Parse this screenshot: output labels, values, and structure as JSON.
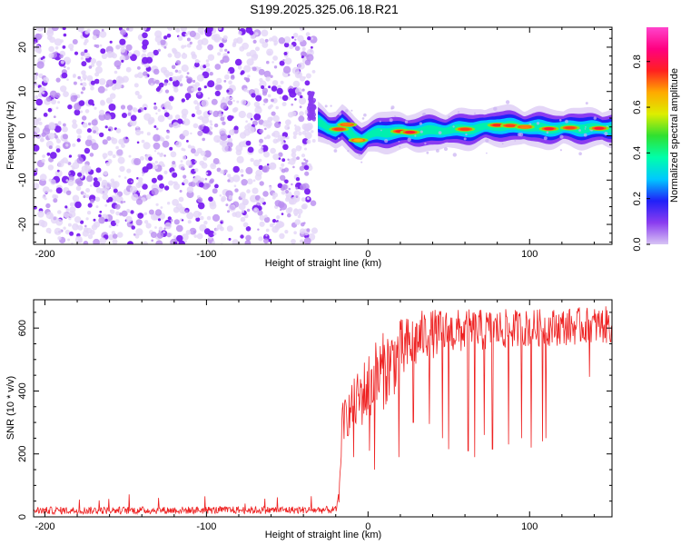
{
  "title": "S199.2025.325.06.18.R21",
  "colors": {
    "axis": "#000000",
    "snr_line": "#ee2222",
    "noise": "#7f22ee",
    "background": "#ffffff"
  },
  "chart_data": [
    {
      "type": "heatmap",
      "name": "spectrogram",
      "xlabel": "Height of straight line (km)",
      "ylabel": "Frequency (Hz)",
      "xlim": [
        -207,
        151
      ],
      "ylim": [
        -24.5,
        24.5
      ],
      "xticks": [
        -200,
        -100,
        0,
        100
      ],
      "yticks": [
        -20,
        -10,
        0,
        10,
        20
      ],
      "colorbar": {
        "label": "Normalized spectral amplitude",
        "range": [
          0,
          0.95
        ],
        "ticks": [
          0.0,
          0.2,
          0.4,
          0.6,
          0.8
        ],
        "colormap": [
          "#d8c4f4",
          "#8a3cf0",
          "#2020f8",
          "#00c8ff",
          "#00ffaa",
          "#30e030",
          "#ddee00",
          "#ffaa00",
          "#ff2020",
          "#ff0080",
          "#ff44cc"
        ]
      },
      "noise_region_km": [
        -207,
        -33
      ],
      "ridge": [
        {
          "x": -31,
          "f": 3.0
        },
        {
          "x": -25,
          "f": 1.8
        },
        {
          "x": -20,
          "f": 1.5
        },
        {
          "x": -16,
          "f": 2.4
        },
        {
          "x": -12,
          "f": 0.8
        },
        {
          "x": -8,
          "f": -0.4
        },
        {
          "x": -4,
          "f": -1.0
        },
        {
          "x": 0,
          "f": 0.0
        },
        {
          "x": 6,
          "f": 0.6
        },
        {
          "x": 15,
          "f": 1.0
        },
        {
          "x": 25,
          "f": 0.8
        },
        {
          "x": 35,
          "f": 1.1
        },
        {
          "x": 50,
          "f": 1.3
        },
        {
          "x": 65,
          "f": 1.6
        },
        {
          "x": 80,
          "f": 2.3
        },
        {
          "x": 92,
          "f": 2.1
        },
        {
          "x": 100,
          "f": 2.0
        },
        {
          "x": 110,
          "f": 1.6
        },
        {
          "x": 125,
          "f": 1.8
        },
        {
          "x": 140,
          "f": 1.7
        },
        {
          "x": 151,
          "f": 1.8
        }
      ],
      "ridge_peaks": [
        {
          "x": -18,
          "f": 1.5,
          "amp": 0.9
        },
        {
          "x": -13,
          "f": 2.5,
          "amp": 0.85
        },
        {
          "x": -6,
          "f": -1.0,
          "amp": 0.8
        },
        {
          "x": 20,
          "f": 1.0,
          "amp": 0.92
        },
        {
          "x": 26,
          "f": 0.8,
          "amp": 0.95
        },
        {
          "x": 60,
          "f": 1.5,
          "amp": 0.9
        },
        {
          "x": 80,
          "f": 2.4,
          "amp": 0.92
        },
        {
          "x": 88,
          "f": 2.3,
          "amp": 0.9
        },
        {
          "x": 97,
          "f": 2.0,
          "amp": 0.85
        },
        {
          "x": 112,
          "f": 1.6,
          "amp": 0.95
        },
        {
          "x": 125,
          "f": 1.8,
          "amp": 0.9
        },
        {
          "x": 143,
          "f": 1.7,
          "amp": 0.95
        }
      ]
    },
    {
      "type": "line",
      "name": "snr",
      "xlabel": "Height of straight line (km)",
      "ylabel": "SNR (10 * v/v)",
      "xlim": [
        -207,
        151
      ],
      "ylim": [
        0,
        690
      ],
      "xticks": [
        -200,
        -100,
        0,
        100
      ],
      "yticks": [
        0,
        200,
        400,
        600
      ],
      "profile": [
        {
          "x": -207,
          "base": 20,
          "amp": 12
        },
        {
          "x": -20,
          "base": 22,
          "amp": 12
        },
        {
          "x": -18,
          "base": 60,
          "amp": 20
        },
        {
          "x": -16,
          "base": 300,
          "amp": 60
        },
        {
          "x": -5,
          "base": 380,
          "amp": 100
        },
        {
          "x": 5,
          "base": 440,
          "amp": 130
        },
        {
          "x": 20,
          "base": 520,
          "amp": 110
        },
        {
          "x": 35,
          "base": 580,
          "amp": 80
        },
        {
          "x": 60,
          "base": 590,
          "amp": 70
        },
        {
          "x": 100,
          "base": 600,
          "amp": 60
        },
        {
          "x": 151,
          "base": 610,
          "amp": 60
        }
      ],
      "dips": [
        {
          "x": -9,
          "y": 190
        },
        {
          "x": 1,
          "y": 210
        },
        {
          "x": 4,
          "y": 150
        },
        {
          "x": 19,
          "y": 190
        },
        {
          "x": 28,
          "y": 300
        },
        {
          "x": 38,
          "y": 295
        },
        {
          "x": 46,
          "y": 250
        },
        {
          "x": 50,
          "y": 215
        },
        {
          "x": 62,
          "y": 210
        },
        {
          "x": 66,
          "y": 190
        },
        {
          "x": 72,
          "y": 260
        },
        {
          "x": 77,
          "y": 215
        },
        {
          "x": 87,
          "y": 230
        },
        {
          "x": 95,
          "y": 250
        },
        {
          "x": 101,
          "y": 220
        },
        {
          "x": 108,
          "y": 240
        },
        {
          "x": 110,
          "y": 250
        },
        {
          "x": 137,
          "y": 445
        }
      ]
    }
  ]
}
